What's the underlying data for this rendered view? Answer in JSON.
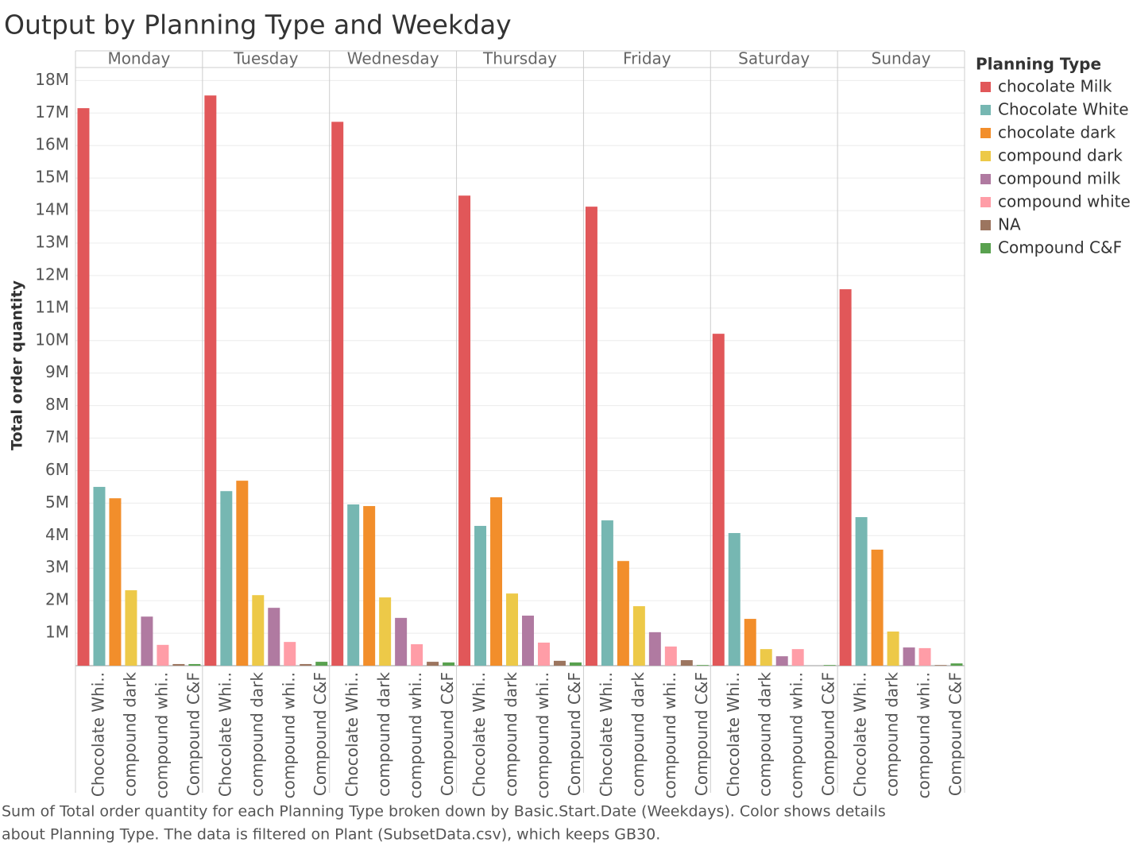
{
  "chart_data": {
    "type": "bar",
    "title": "Output by Planning Type and Weekday",
    "y_label": "Total order quantity",
    "legend_title": "Planning Type",
    "legend": "right",
    "grid": true,
    "categories": [
      "Monday",
      "Tuesday",
      "Wednesday",
      "Thursday",
      "Friday",
      "Saturday",
      "Sunday"
    ],
    "bar_labels": [
      null,
      "Chocolate Whi..",
      null,
      "compound dark",
      null,
      "compound whi..",
      null,
      "Compound C&F"
    ],
    "ylim": [
      0,
      18400000
    ],
    "yticks": [
      {
        "value": 1000000,
        "label": "1M"
      },
      {
        "value": 2000000,
        "label": "2M"
      },
      {
        "value": 3000000,
        "label": "3M"
      },
      {
        "value": 4000000,
        "label": "4M"
      },
      {
        "value": 5000000,
        "label": "5M"
      },
      {
        "value": 6000000,
        "label": "6M"
      },
      {
        "value": 7000000,
        "label": "7M"
      },
      {
        "value": 8000000,
        "label": "8M"
      },
      {
        "value": 9000000,
        "label": "9M"
      },
      {
        "value": 10000000,
        "label": "10M"
      },
      {
        "value": 11000000,
        "label": "11M"
      },
      {
        "value": 12000000,
        "label": "12M"
      },
      {
        "value": 13000000,
        "label": "13M"
      },
      {
        "value": 14000000,
        "label": "14M"
      },
      {
        "value": 15000000,
        "label": "15M"
      },
      {
        "value": 16000000,
        "label": "16M"
      },
      {
        "value": 17000000,
        "label": "17M"
      },
      {
        "value": 18000000,
        "label": "18M"
      }
    ],
    "series": [
      {
        "name": "chocolate Milk",
        "color": "#e15759",
        "values": [
          17150000,
          17540000,
          16730000,
          14460000,
          14120000,
          10210000,
          11580000
        ]
      },
      {
        "name": "Chocolate White",
        "color": "#76b7b2",
        "values": [
          5500000,
          5370000,
          4960000,
          4300000,
          4470000,
          4080000,
          4570000
        ]
      },
      {
        "name": "chocolate dark",
        "color": "#f28e2b",
        "values": [
          5150000,
          5690000,
          4910000,
          5180000,
          3220000,
          1440000,
          3570000
        ]
      },
      {
        "name": "compound dark",
        "color": "#edc948",
        "values": [
          2320000,
          2170000,
          2100000,
          2220000,
          1830000,
          510000,
          1050000
        ]
      },
      {
        "name": "compound milk",
        "color": "#b07aa1",
        "values": [
          1510000,
          1780000,
          1470000,
          1540000,
          1030000,
          290000,
          560000
        ]
      },
      {
        "name": "compound white",
        "color": "#ff9da7",
        "values": [
          640000,
          730000,
          660000,
          710000,
          590000,
          510000,
          540000
        ]
      },
      {
        "name": "NA",
        "color": "#9c755f",
        "values": [
          50000,
          50000,
          120000,
          150000,
          170000,
          null,
          20000
        ]
      },
      {
        "name": "Compound C&F",
        "color": "#59a14f",
        "values": [
          50000,
          120000,
          100000,
          100000,
          20000,
          20000,
          70000
        ]
      }
    ],
    "caption": [
      "Sum of Total order quantity for each Planning Type broken down by Basic.Start.Date (Weekdays).  Color shows details",
      "about Planning Type. The data is filtered on Plant (SubsetData.csv), which keeps GB30."
    ]
  }
}
